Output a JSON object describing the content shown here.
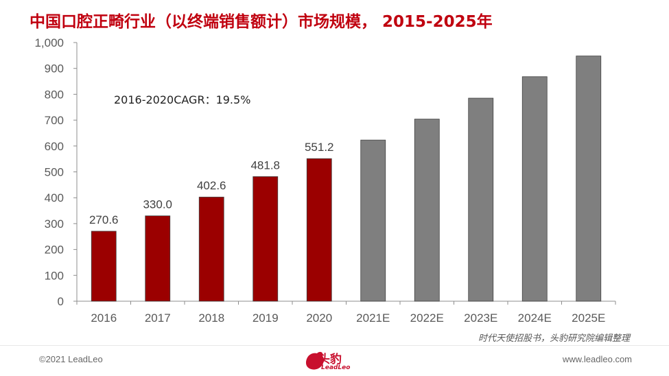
{
  "title": "中国口腔正畸行业（以终端销售额计）市场规模， 2015-2025年",
  "annotation": "2016-2020CAGR：19.5%",
  "source": "时代天使招股书，头豹研究院编辑整理",
  "footer": {
    "copyright": "©2021 LeadLeo",
    "website": "www.leadleo.com",
    "logo_cn": "头豹",
    "logo_en": "LeadLeo"
  },
  "colors": {
    "actual": "#9b0000",
    "forecast": "#7f7f7f",
    "title": "#c0000f"
  },
  "chart_data": {
    "type": "bar",
    "categories": [
      "2016",
      "2017",
      "2018",
      "2019",
      "2020",
      "2021E",
      "2022E",
      "2023E",
      "2024E",
      "2025E"
    ],
    "values": [
      270.6,
      330.0,
      402.6,
      481.8,
      551.2,
      623,
      704,
      785,
      868,
      948
    ],
    "labels": [
      "270.6",
      "330.0",
      "402.6",
      "481.8",
      "551.2",
      "",
      "",
      "",
      "",
      ""
    ],
    "forecast_start_index": 5,
    "ylim": [
      0,
      1000
    ],
    "yticks": [
      "0",
      "100",
      "200",
      "300",
      "400",
      "500",
      "600",
      "700",
      "800",
      "900",
      "1,000"
    ],
    "grid": false
  }
}
